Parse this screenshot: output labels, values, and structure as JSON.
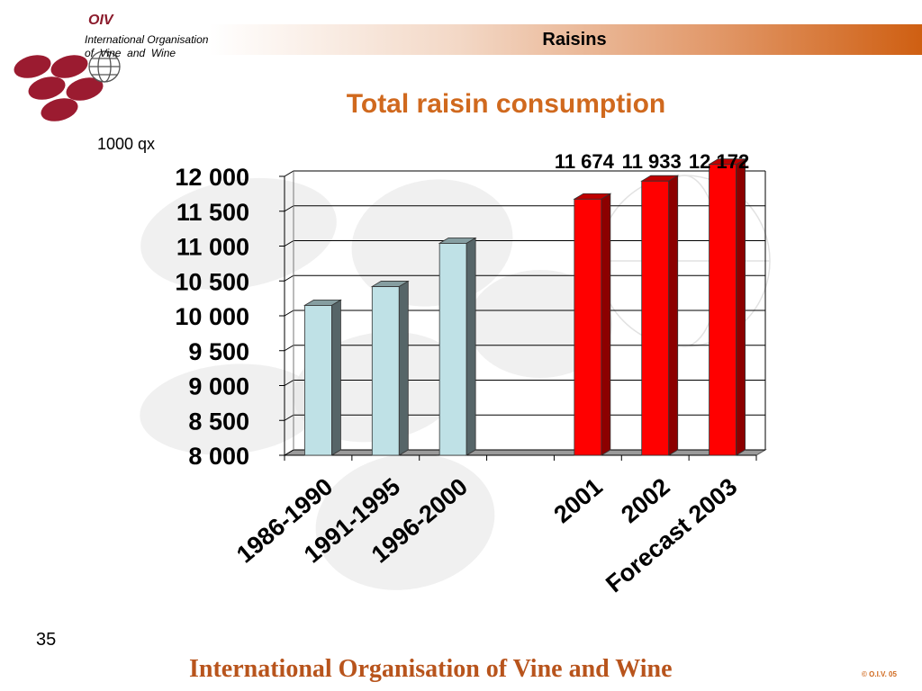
{
  "header": {
    "section_title": "Raisins"
  },
  "logo": {
    "abbr": "OIV",
    "line1": "International Organisation",
    "line2": "of  Vine  and  Wine",
    "colors": {
      "grape": "#9b1b30",
      "globe": "#ffffff"
    }
  },
  "page": {
    "number": "35",
    "footer": "International Organisation of Vine and Wine",
    "copyright": "© O.I.V. 05"
  },
  "chart_data": {
    "type": "bar",
    "title": "Total raisin consumption",
    "unit_label": "1000 qx",
    "categories": [
      "1986-1990",
      "1991-1995",
      "1996-2000",
      "",
      "2001",
      "2002",
      "Forecast 2003"
    ],
    "values": [
      10150,
      10420,
      11040,
      null,
      11674,
      11933,
      12172
    ],
    "data_labels": [
      "",
      "",
      "",
      "",
      "11 674",
      "11 933",
      "12 172"
    ],
    "ylim": [
      8000,
      12000
    ],
    "yticks": [
      8000,
      8500,
      9000,
      9500,
      10000,
      10500,
      11000,
      11500,
      12000
    ],
    "ytick_labels": [
      "8 000",
      "8 500",
      "9 000",
      "9 500",
      "10 000",
      "10 500",
      "11 000",
      "11 500",
      "12 000"
    ],
    "grid": true,
    "bar_style": "3d",
    "colors": {
      "historical": "#bfe1e6",
      "recent": "#ff0000"
    }
  }
}
